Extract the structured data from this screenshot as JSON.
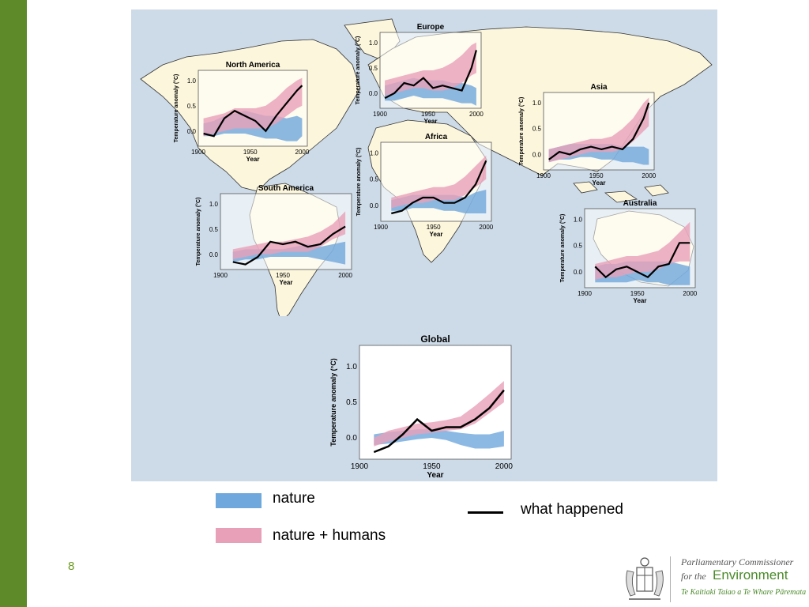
{
  "page_number": "8",
  "legend": {
    "nature": "nature",
    "nature_humans": "nature + humans",
    "observed": "what happened"
  },
  "colors": {
    "sidebar": "#5e8a2a",
    "nature_band": "#6fa8dc",
    "humans_band": "#e8a0b8",
    "observed_line": "#000000",
    "ocean": "#cddbe8",
    "land": "#fcf6dc"
  },
  "logo": {
    "line1": "Parliamentary Commissioner",
    "line2_prefix": "for the",
    "line2_word": "Environment",
    "line3": "Te Kaitiaki Taiao a Te Whare Pāremata"
  },
  "chart_data": [
    {
      "type": "area",
      "title": "North America",
      "xlabel": "Year",
      "ylabel": "Temperature anomaly (°C)",
      "xticks": [
        "1900",
        "1950",
        "2000"
      ],
      "yticks": [
        "0.0",
        "0.5",
        "1.0"
      ],
      "xlim": [
        1900,
        2005
      ],
      "ylim": [
        -0.3,
        1.2
      ],
      "x": [
        1905,
        1915,
        1925,
        1935,
        1945,
        1955,
        1965,
        1975,
        1985,
        1995,
        2000
      ],
      "observed": [
        -0.05,
        -0.1,
        0.25,
        0.4,
        0.3,
        0.2,
        0.0,
        0.3,
        0.55,
        0.8,
        0.9
      ],
      "nature_low": [
        -0.1,
        -0.1,
        -0.05,
        -0.05,
        -0.05,
        -0.1,
        -0.15,
        -0.15,
        -0.2,
        -0.2,
        -0.1
      ],
      "nature_high": [
        0.15,
        0.2,
        0.3,
        0.35,
        0.4,
        0.35,
        0.3,
        0.3,
        0.25,
        0.3,
        0.25
      ],
      "humans_low": [
        -0.1,
        -0.05,
        0.0,
        0.05,
        0.05,
        0.05,
        0.05,
        0.15,
        0.3,
        0.45,
        0.5
      ],
      "humans_high": [
        0.25,
        0.3,
        0.35,
        0.45,
        0.45,
        0.45,
        0.5,
        0.65,
        0.85,
        1.0,
        1.05
      ]
    },
    {
      "type": "area",
      "title": "Europe",
      "xlabel": "Year",
      "ylabel": "Temperature anomaly (°C)",
      "xticks": [
        "1900",
        "1950",
        "2000"
      ],
      "yticks": [
        "0.0",
        "0.5",
        "1.0"
      ],
      "xlim": [
        1900,
        2005
      ],
      "ylim": [
        -0.3,
        1.2
      ],
      "x": [
        1905,
        1915,
        1925,
        1935,
        1945,
        1955,
        1965,
        1975,
        1985,
        1995,
        2000
      ],
      "observed": [
        -0.1,
        0.0,
        0.2,
        0.15,
        0.3,
        0.1,
        0.15,
        0.1,
        0.05,
        0.5,
        0.85
      ],
      "nature_low": [
        -0.15,
        -0.15,
        -0.1,
        -0.05,
        -0.1,
        -0.1,
        -0.1,
        -0.15,
        -0.2,
        -0.2,
        -0.25
      ],
      "nature_high": [
        0.15,
        0.2,
        0.25,
        0.3,
        0.25,
        0.25,
        0.25,
        0.2,
        0.2,
        0.15,
        0.1
      ],
      "humans_low": [
        -0.05,
        0.0,
        0.05,
        0.1,
        0.1,
        0.05,
        0.05,
        0.1,
        0.2,
        0.35,
        0.4
      ],
      "humans_high": [
        0.25,
        0.3,
        0.35,
        0.4,
        0.45,
        0.45,
        0.5,
        0.6,
        0.75,
        0.95,
        1.0
      ]
    },
    {
      "type": "area",
      "title": "Asia",
      "xlabel": "Year",
      "ylabel": "Temperature anomaly (°C)",
      "xticks": [
        "1900",
        "1950",
        "2000"
      ],
      "yticks": [
        "0.0",
        "0.5",
        "1.0"
      ],
      "xlim": [
        1900,
        2005
      ],
      "ylim": [
        -0.3,
        1.2
      ],
      "x": [
        1905,
        1915,
        1925,
        1935,
        1945,
        1955,
        1965,
        1975,
        1985,
        1995,
        2000
      ],
      "observed": [
        -0.1,
        0.05,
        0.0,
        0.1,
        0.15,
        0.1,
        0.15,
        0.1,
        0.3,
        0.7,
        1.0
      ],
      "nature_low": [
        -0.15,
        -0.1,
        -0.1,
        -0.05,
        -0.05,
        -0.1,
        -0.1,
        -0.15,
        -0.15,
        -0.2,
        -0.2
      ],
      "nature_high": [
        0.1,
        0.15,
        0.2,
        0.2,
        0.2,
        0.2,
        0.2,
        0.15,
        0.15,
        0.15,
        0.1
      ],
      "humans_low": [
        -0.15,
        -0.1,
        -0.05,
        0.0,
        0.05,
        0.05,
        0.05,
        0.1,
        0.25,
        0.45,
        0.55
      ],
      "humans_high": [
        0.1,
        0.15,
        0.2,
        0.25,
        0.3,
        0.3,
        0.35,
        0.5,
        0.7,
        1.0,
        1.1
      ]
    },
    {
      "type": "area",
      "title": "Africa",
      "xlabel": "Year",
      "ylabel": "Temperature anomaly (°C)",
      "xticks": [
        "1900",
        "1950",
        "2000"
      ],
      "yticks": [
        "0.0",
        "0.5",
        "1.0"
      ],
      "xlim": [
        1900,
        2005
      ],
      "ylim": [
        -0.3,
        1.2
      ],
      "x": [
        1910,
        1920,
        1930,
        1940,
        1950,
        1960,
        1970,
        1980,
        1990,
        2000
      ],
      "observed": [
        -0.15,
        -0.1,
        0.05,
        0.15,
        0.15,
        0.05,
        0.05,
        0.15,
        0.4,
        0.85
      ],
      "nature_low": [
        -0.1,
        -0.1,
        -0.05,
        -0.05,
        -0.05,
        -0.1,
        -0.1,
        -0.15,
        -0.15,
        -0.15
      ],
      "nature_high": [
        0.1,
        0.15,
        0.2,
        0.2,
        0.2,
        0.2,
        0.2,
        0.15,
        0.25,
        0.3
      ],
      "humans_low": [
        -0.05,
        0.0,
        0.05,
        0.05,
        0.1,
        0.1,
        0.1,
        0.2,
        0.35,
        0.5
      ],
      "humans_high": [
        0.15,
        0.2,
        0.25,
        0.3,
        0.35,
        0.35,
        0.4,
        0.55,
        0.75,
        0.95
      ]
    },
    {
      "type": "area",
      "title": "South America",
      "xlabel": "Year",
      "ylabel": "Temperature anomaly (°C)",
      "xticks": [
        "1900",
        "1950",
        "2000"
      ],
      "yticks": [
        "0.0",
        "0.5",
        "1.0"
      ],
      "xlim": [
        1900,
        2005
      ],
      "ylim": [
        -0.3,
        1.2
      ],
      "x": [
        1910,
        1920,
        1930,
        1940,
        1950,
        1960,
        1970,
        1980,
        1990,
        2000
      ],
      "observed": [
        -0.15,
        -0.2,
        -0.05,
        0.25,
        0.2,
        0.25,
        0.15,
        0.2,
        0.4,
        0.55
      ],
      "nature_low": [
        -0.15,
        -0.1,
        -0.1,
        -0.05,
        -0.05,
        -0.05,
        -0.05,
        -0.1,
        -0.15,
        -0.2
      ],
      "nature_high": [
        0.05,
        0.1,
        0.1,
        0.1,
        0.1,
        0.15,
        0.2,
        0.15,
        0.2,
        0.25
      ],
      "humans_low": [
        -0.1,
        -0.05,
        0.0,
        0.0,
        0.05,
        0.05,
        0.05,
        0.15,
        0.3,
        0.4
      ],
      "humans_high": [
        0.1,
        0.15,
        0.2,
        0.25,
        0.25,
        0.3,
        0.35,
        0.45,
        0.6,
        0.85
      ]
    },
    {
      "type": "area",
      "title": "Australia",
      "xlabel": "Year",
      "ylabel": "Temperature anomaly (°C)",
      "xticks": [
        "1900",
        "1950",
        "2000"
      ],
      "yticks": [
        "0.0",
        "0.5",
        "1.0"
      ],
      "xlim": [
        1900,
        2005
      ],
      "ylim": [
        -0.3,
        1.2
      ],
      "x": [
        1910,
        1920,
        1930,
        1940,
        1950,
        1960,
        1970,
        1980,
        1990,
        2000
      ],
      "observed": [
        0.1,
        -0.1,
        0.05,
        0.1,
        0.0,
        -0.1,
        0.1,
        0.15,
        0.55,
        0.55
      ],
      "nature_low": [
        -0.2,
        -0.2,
        -0.2,
        -0.2,
        -0.15,
        -0.2,
        -0.2,
        -0.25,
        -0.25,
        -0.25
      ],
      "nature_high": [
        0.1,
        0.15,
        0.15,
        0.2,
        0.2,
        0.2,
        0.2,
        0.2,
        0.15,
        0.1
      ],
      "humans_low": [
        -0.15,
        -0.1,
        -0.1,
        -0.05,
        0.0,
        0.0,
        0.05,
        0.15,
        0.2,
        0.2
      ],
      "humans_high": [
        0.15,
        0.2,
        0.25,
        0.3,
        0.3,
        0.35,
        0.4,
        0.55,
        0.75,
        0.95
      ]
    },
    {
      "type": "area",
      "title": "Global",
      "xlabel": "Year",
      "ylabel": "Temperature anomaly (°C)",
      "xticks": [
        "1900",
        "1950",
        "2000"
      ],
      "yticks": [
        "0.0",
        "0.5",
        "1.0"
      ],
      "xlim": [
        1900,
        2005
      ],
      "ylim": [
        -0.3,
        1.3
      ],
      "x": [
        1910,
        1920,
        1930,
        1940,
        1950,
        1960,
        1970,
        1980,
        1990,
        2000
      ],
      "observed": [
        -0.2,
        -0.12,
        0.05,
        0.26,
        0.1,
        0.15,
        0.15,
        0.26,
        0.42,
        0.67
      ],
      "nature_low": [
        -0.1,
        -0.08,
        -0.05,
        -0.02,
        0.0,
        -0.03,
        -0.1,
        -0.15,
        -0.15,
        -0.12
      ],
      "nature_high": [
        0.05,
        0.08,
        0.1,
        0.12,
        0.12,
        0.1,
        0.07,
        0.05,
        0.05,
        0.1
      ],
      "humans_low": [
        -0.12,
        -0.05,
        0.0,
        0.05,
        0.07,
        0.1,
        0.12,
        0.2,
        0.35,
        0.5
      ],
      "humans_high": [
        0.0,
        0.1,
        0.15,
        0.2,
        0.22,
        0.25,
        0.3,
        0.45,
        0.62,
        0.8
      ]
    }
  ]
}
